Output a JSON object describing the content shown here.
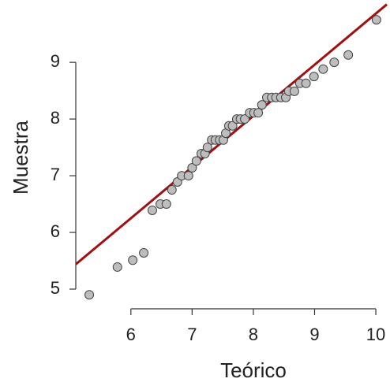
{
  "chart_data": {
    "type": "scatter",
    "xlabel": "Teórico",
    "ylabel": "Muestra",
    "x": [
      5.32,
      5.78,
      6.03,
      6.21,
      6.35,
      6.48,
      6.58,
      6.67,
      6.76,
      6.83,
      6.94,
      7.0,
      7.07,
      7.15,
      7.21,
      7.25,
      7.32,
      7.38,
      7.45,
      7.51,
      7.55,
      7.6,
      7.66,
      7.73,
      7.79,
      7.86,
      7.94,
      8.01,
      8.08,
      8.14,
      8.22,
      8.3,
      8.37,
      8.45,
      8.53,
      8.58,
      8.67,
      8.76,
      8.86,
      8.99,
      9.14,
      9.32,
      9.55,
      10.01
    ],
    "values": [
      4.9,
      5.39,
      5.51,
      5.64,
      6.39,
      6.5,
      6.5,
      6.75,
      6.89,
      7.0,
      7.0,
      7.14,
      7.26,
      7.39,
      7.39,
      7.5,
      7.63,
      7.63,
      7.63,
      7.63,
      7.75,
      7.88,
      7.88,
      8.0,
      8.0,
      8.0,
      8.11,
      8.11,
      8.11,
      8.25,
      8.38,
      8.38,
      8.38,
      8.38,
      8.38,
      8.49,
      8.49,
      8.63,
      8.63,
      8.75,
      8.88,
      9.0,
      9.13,
      9.75
    ],
    "color": "#bdbdbd",
    "reference_line": {
      "slope": 0.9025,
      "intercept": 0.835,
      "color": "#a01010"
    },
    "xlim": [
      5.1,
      10.18
    ],
    "ylim": [
      4.75,
      10.03
    ],
    "xticks": [
      6,
      7,
      8,
      9,
      10
    ],
    "yticks": [
      5,
      6,
      7,
      8,
      9
    ]
  }
}
